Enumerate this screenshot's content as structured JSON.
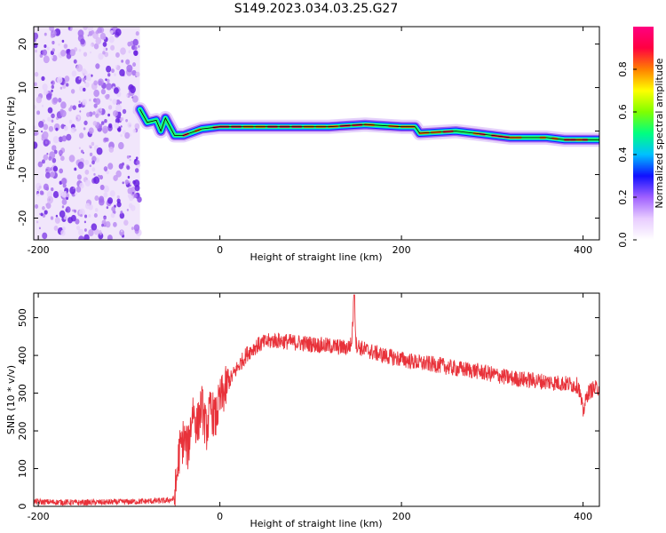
{
  "title": "S149.2023.034.03.25.G27",
  "chart_data": [
    {
      "type": "heatmap",
      "xlabel": "Height of straight line (km)",
      "ylabel": "Frequency (Hz)",
      "xlim": [
        -205,
        418
      ],
      "ylim": [
        -25,
        24
      ],
      "xticks": [
        -200,
        0,
        200,
        400
      ],
      "yticks": [
        -20,
        -10,
        0,
        10,
        20
      ],
      "noise_region_km": [
        -205,
        -88
      ],
      "ridge": {
        "x": [
          -88,
          -80,
          -70,
          -65,
          -60,
          -55,
          -50,
          -40,
          -20,
          0,
          40,
          80,
          120,
          160,
          200,
          215,
          220,
          260,
          280,
          300,
          320,
          340,
          360,
          380,
          400,
          418
        ],
        "freq": [
          5,
          2,
          2.5,
          0,
          3,
          1,
          -1,
          -1,
          0.5,
          1.0,
          1.0,
          1.0,
          1.0,
          1.5,
          1.0,
          1.0,
          -0.5,
          0,
          -0.5,
          -1,
          -1.5,
          -1.5,
          -1.5,
          -2,
          -2,
          -2
        ]
      },
      "colorbar": {
        "label": "Normalized spectral amplitude",
        "range": [
          0,
          1
        ],
        "ticks": [
          "0.0",
          "0.2",
          "0.4",
          "0.6",
          "0.8"
        ],
        "colors": [
          "#ffffff",
          "#e8ccff",
          "#a060ff",
          "#1010ff",
          "#00c0ff",
          "#00ff80",
          "#80ff00",
          "#ffff00",
          "#ff8000",
          "#ff0040",
          "#ff0080"
        ]
      }
    },
    {
      "type": "line",
      "xlabel": "Height of straight line (km)",
      "ylabel": "SNR (10 * v/v)",
      "xlim": [
        -205,
        418
      ],
      "ylim": [
        0,
        565
      ],
      "xticks": [
        -200,
        0,
        200,
        400
      ],
      "yticks": [
        0,
        100,
        200,
        300,
        400,
        500
      ],
      "line_color": "#e8323a",
      "series": [
        {
          "x": [
            -205,
            -150,
            -100,
            -60,
            -50,
            -48,
            -45,
            -40,
            -35,
            -30,
            -25,
            -20,
            -15,
            -10,
            -5,
            0,
            10,
            20,
            30,
            40,
            50,
            60,
            80,
            100,
            120,
            140,
            145,
            148,
            150,
            155,
            160,
            180,
            200,
            220,
            240,
            260,
            280,
            300,
            320,
            340,
            360,
            380,
            395,
            400,
            405,
            410,
            418
          ],
          "y": [
            12,
            10,
            12,
            15,
            20,
            60,
            140,
            180,
            150,
            260,
            210,
            270,
            200,
            260,
            230,
            280,
            330,
            370,
            405,
            425,
            435,
            440,
            435,
            430,
            425,
            420,
            430,
            560,
            430,
            420,
            415,
            400,
            390,
            380,
            375,
            365,
            360,
            350,
            340,
            335,
            330,
            325,
            320,
            250,
            300,
            310,
            315
          ]
        }
      ]
    }
  ]
}
